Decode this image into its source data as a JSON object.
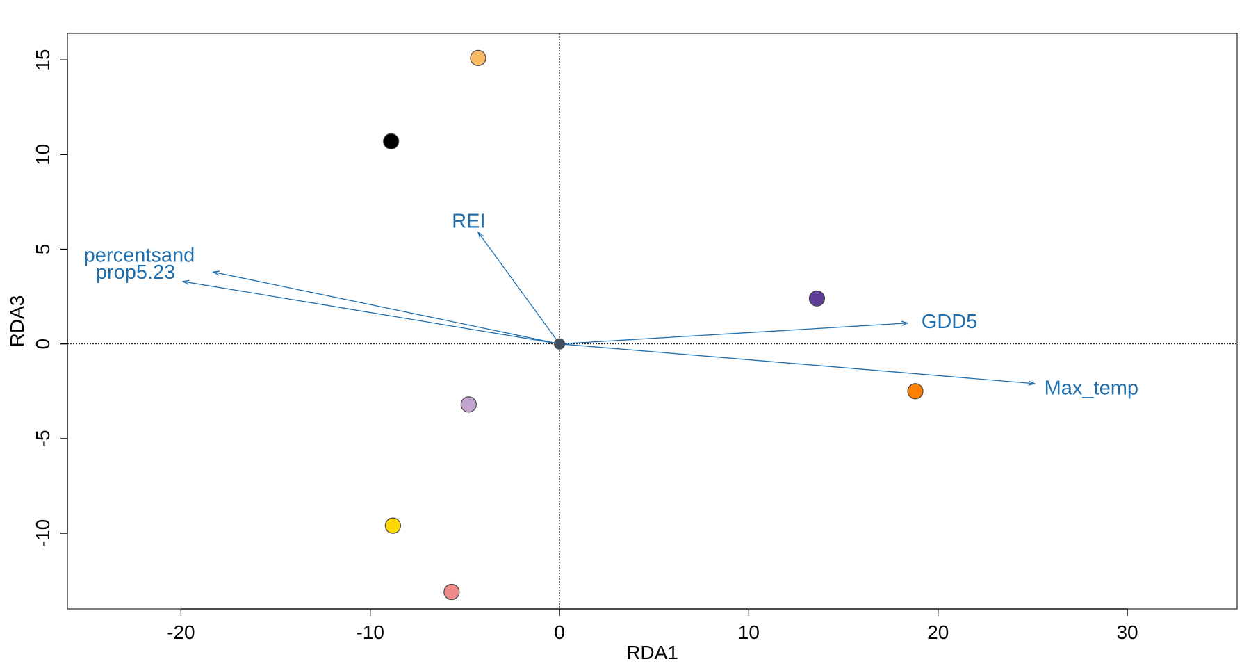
{
  "chart_data": {
    "type": "scatter",
    "title": "",
    "xlabel": "RDA1",
    "ylabel": "RDA3",
    "xlim": [
      -26,
      35.8
    ],
    "ylim": [
      -14,
      16.4
    ],
    "xticks": [
      -20,
      -10,
      0,
      10,
      20,
      30
    ],
    "yticks": [
      -10,
      -5,
      0,
      5,
      10,
      15
    ],
    "xtick_labels": [
      "-20",
      "-10",
      "0",
      "10",
      "20",
      "30"
    ],
    "ytick_labels": [
      "-10",
      "-5",
      "0",
      "5",
      "10",
      "15"
    ],
    "reference_lines": {
      "x": 0,
      "y": 0,
      "style": "dotted"
    },
    "grid": false,
    "points": [
      {
        "x": -4.3,
        "y": 15.1,
        "color": "#FDB863"
      },
      {
        "x": -8.9,
        "y": 10.7,
        "color": "#000000"
      },
      {
        "x": 13.6,
        "y": 2.4,
        "color": "#5E3C99"
      },
      {
        "x": 18.8,
        "y": -2.5,
        "color": "#FF7F00"
      },
      {
        "x": -4.8,
        "y": -3.2,
        "color": "#C2A5CF"
      },
      {
        "x": -8.8,
        "y": -9.6,
        "color": "#FFD700"
      },
      {
        "x": -5.7,
        "y": -13.1,
        "color": "#F08A8A"
      },
      {
        "x": 0,
        "y": 0,
        "color": "#3F4F5F"
      }
    ],
    "arrow_color": "#1F6FAE",
    "arrows": [
      {
        "name": "REI",
        "x": -4.3,
        "y": 5.9,
        "label_x": -4.8,
        "label_y": 6.5
      },
      {
        "name": "percentsand",
        "x": -18.3,
        "y": 3.8,
        "label_x": -22.2,
        "label_y": 4.7
      },
      {
        "name": "prop5.23",
        "x": -19.9,
        "y": 3.3,
        "label_x": -22.4,
        "label_y": 3.8
      },
      {
        "name": "GDD5",
        "x": 18.4,
        "y": 1.1,
        "label_x": 20.6,
        "label_y": 1.2
      },
      {
        "name": "Max_temp",
        "x": 25.1,
        "y": -2.1,
        "label_x": 28.1,
        "label_y": -2.3
      }
    ]
  }
}
